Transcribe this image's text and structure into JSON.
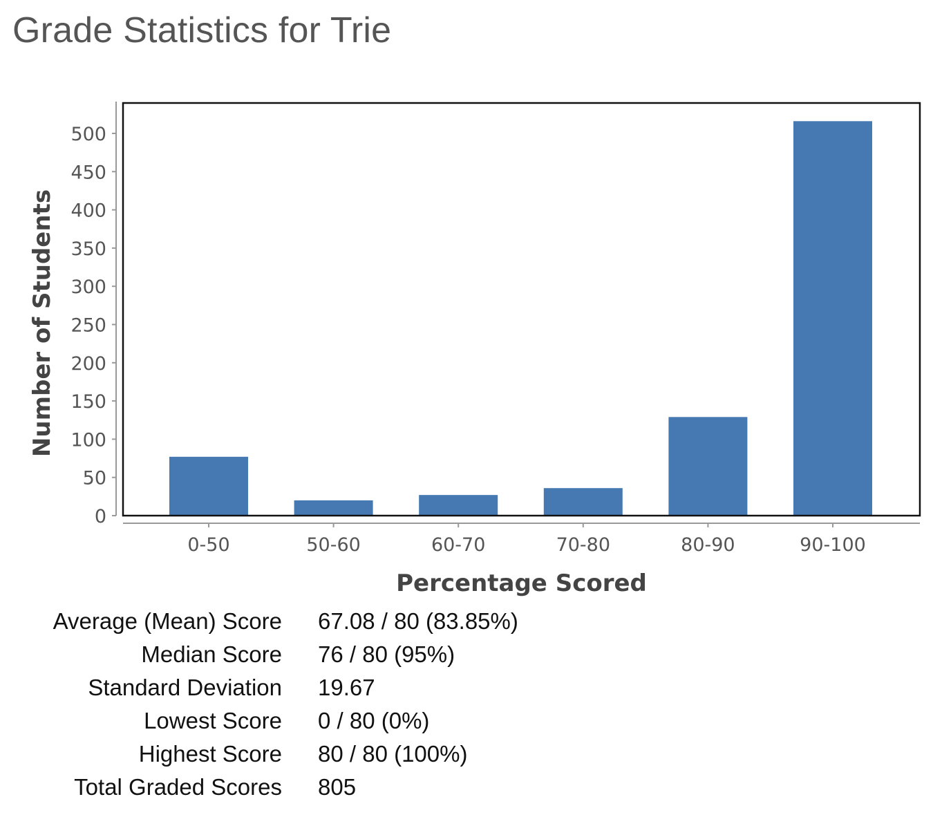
{
  "page": {
    "title": "Grade Statistics for Trie"
  },
  "chart_data": {
    "type": "bar",
    "categories": [
      "0-50",
      "50-60",
      "60-70",
      "70-80",
      "80-90",
      "90-100"
    ],
    "values": [
      77,
      20,
      27,
      36,
      129,
      516
    ],
    "xlabel": "Percentage Scored",
    "ylabel": "Number of Students",
    "ylim": [
      0,
      540
    ],
    "yticks": [
      0,
      50,
      100,
      150,
      200,
      250,
      300,
      350,
      400,
      450,
      500
    ],
    "bar_color": "#4679b2",
    "grid": false,
    "legend": "none"
  },
  "stats": {
    "rows": [
      {
        "label": "Average (Mean) Score",
        "value": "67.08 / 80 (83.85%)"
      },
      {
        "label": "Median Score",
        "value": "76 / 80 (95%)"
      },
      {
        "label": "Standard Deviation",
        "value": "19.67"
      },
      {
        "label": "Lowest Score",
        "value": "0 / 80 (0%)"
      },
      {
        "label": "Highest Score",
        "value": "80 / 80 (100%)"
      },
      {
        "label": "Total Graded Scores",
        "value": "805"
      }
    ]
  }
}
